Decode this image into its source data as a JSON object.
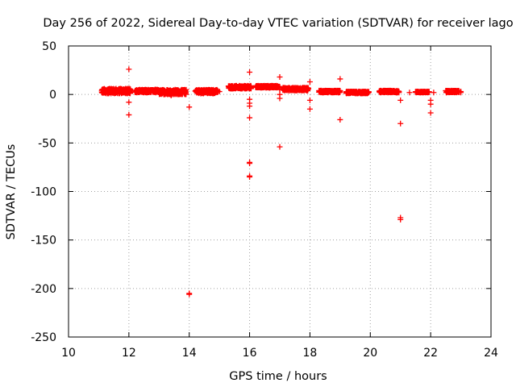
{
  "chart_data": {
    "type": "scatter",
    "title": "Day 256 of 2022, Sidereal Day-to-day VTEC variation (SDTVAR) for receiver lago",
    "xlabel": "GPS time / hours",
    "ylabel": "SDTVAR / TECUs",
    "xlim": [
      10,
      24
    ],
    "ylim": [
      -250,
      50
    ],
    "xticks": [
      10,
      12,
      14,
      16,
      18,
      20,
      22,
      24
    ],
    "yticks": [
      50,
      0,
      -50,
      -100,
      -150,
      -200,
      -250
    ],
    "grid": true,
    "marker": "plus",
    "color": "#ff0000",
    "series": [
      {
        "name": "SDTVAR",
        "bands": [
          {
            "x0": 11.1,
            "x1": 12.05,
            "ylo": 1,
            "yhi": 6
          },
          {
            "x0": 12.2,
            "x1": 13.0,
            "ylo": 2,
            "yhi": 5
          },
          {
            "x0": 13.0,
            "x1": 13.9,
            "ylo": 0,
            "yhi": 5
          },
          {
            "x0": 14.2,
            "x1": 14.95,
            "ylo": 1,
            "yhi": 5
          },
          {
            "x0": 15.3,
            "x1": 16.05,
            "ylo": 6,
            "yhi": 9
          },
          {
            "x0": 16.2,
            "x1": 17.0,
            "ylo": 7,
            "yhi": 9
          },
          {
            "x0": 17.1,
            "x1": 17.95,
            "ylo": 4,
            "yhi": 7
          },
          {
            "x0": 18.3,
            "x1": 19.0,
            "ylo": 2,
            "yhi": 4
          },
          {
            "x0": 19.2,
            "x1": 19.95,
            "ylo": 1,
            "yhi": 3
          },
          {
            "x0": 20.3,
            "x1": 20.95,
            "ylo": 2,
            "yhi": 4
          },
          {
            "x0": 21.5,
            "x1": 21.95,
            "ylo": 2,
            "yhi": 3
          },
          {
            "x0": 22.5,
            "x1": 22.95,
            "ylo": 2,
            "yhi": 4
          }
        ],
        "points": [
          [
            12.0,
            26
          ],
          [
            12.0,
            -8
          ],
          [
            12.0,
            -21
          ],
          [
            14.0,
            -13
          ],
          [
            14.0,
            -205
          ],
          [
            14.0,
            -206
          ],
          [
            16.0,
            23
          ],
          [
            16.0,
            -5
          ],
          [
            16.0,
            -9
          ],
          [
            16.0,
            -12
          ],
          [
            16.0,
            -24
          ],
          [
            16.0,
            -70
          ],
          [
            16.0,
            -71
          ],
          [
            16.0,
            -84
          ],
          [
            16.0,
            -85
          ],
          [
            17.0,
            18
          ],
          [
            17.0,
            5
          ],
          [
            17.0,
            0
          ],
          [
            17.0,
            -4
          ],
          [
            17.0,
            -54
          ],
          [
            18.0,
            13
          ],
          [
            18.0,
            -6
          ],
          [
            18.0,
            -15
          ],
          [
            19.0,
            16
          ],
          [
            19.0,
            -26
          ],
          [
            21.0,
            -6
          ],
          [
            21.0,
            -30
          ],
          [
            21.0,
            -127
          ],
          [
            21.0,
            -129
          ],
          [
            22.0,
            -6
          ],
          [
            22.0,
            -10
          ],
          [
            22.0,
            -19
          ],
          [
            21.3,
            2
          ],
          [
            22.1,
            2
          ],
          [
            23.0,
            2
          ],
          [
            23.0,
            3
          ],
          [
            13.4,
            -1
          ],
          [
            15.0,
            3
          ]
        ]
      }
    ]
  }
}
